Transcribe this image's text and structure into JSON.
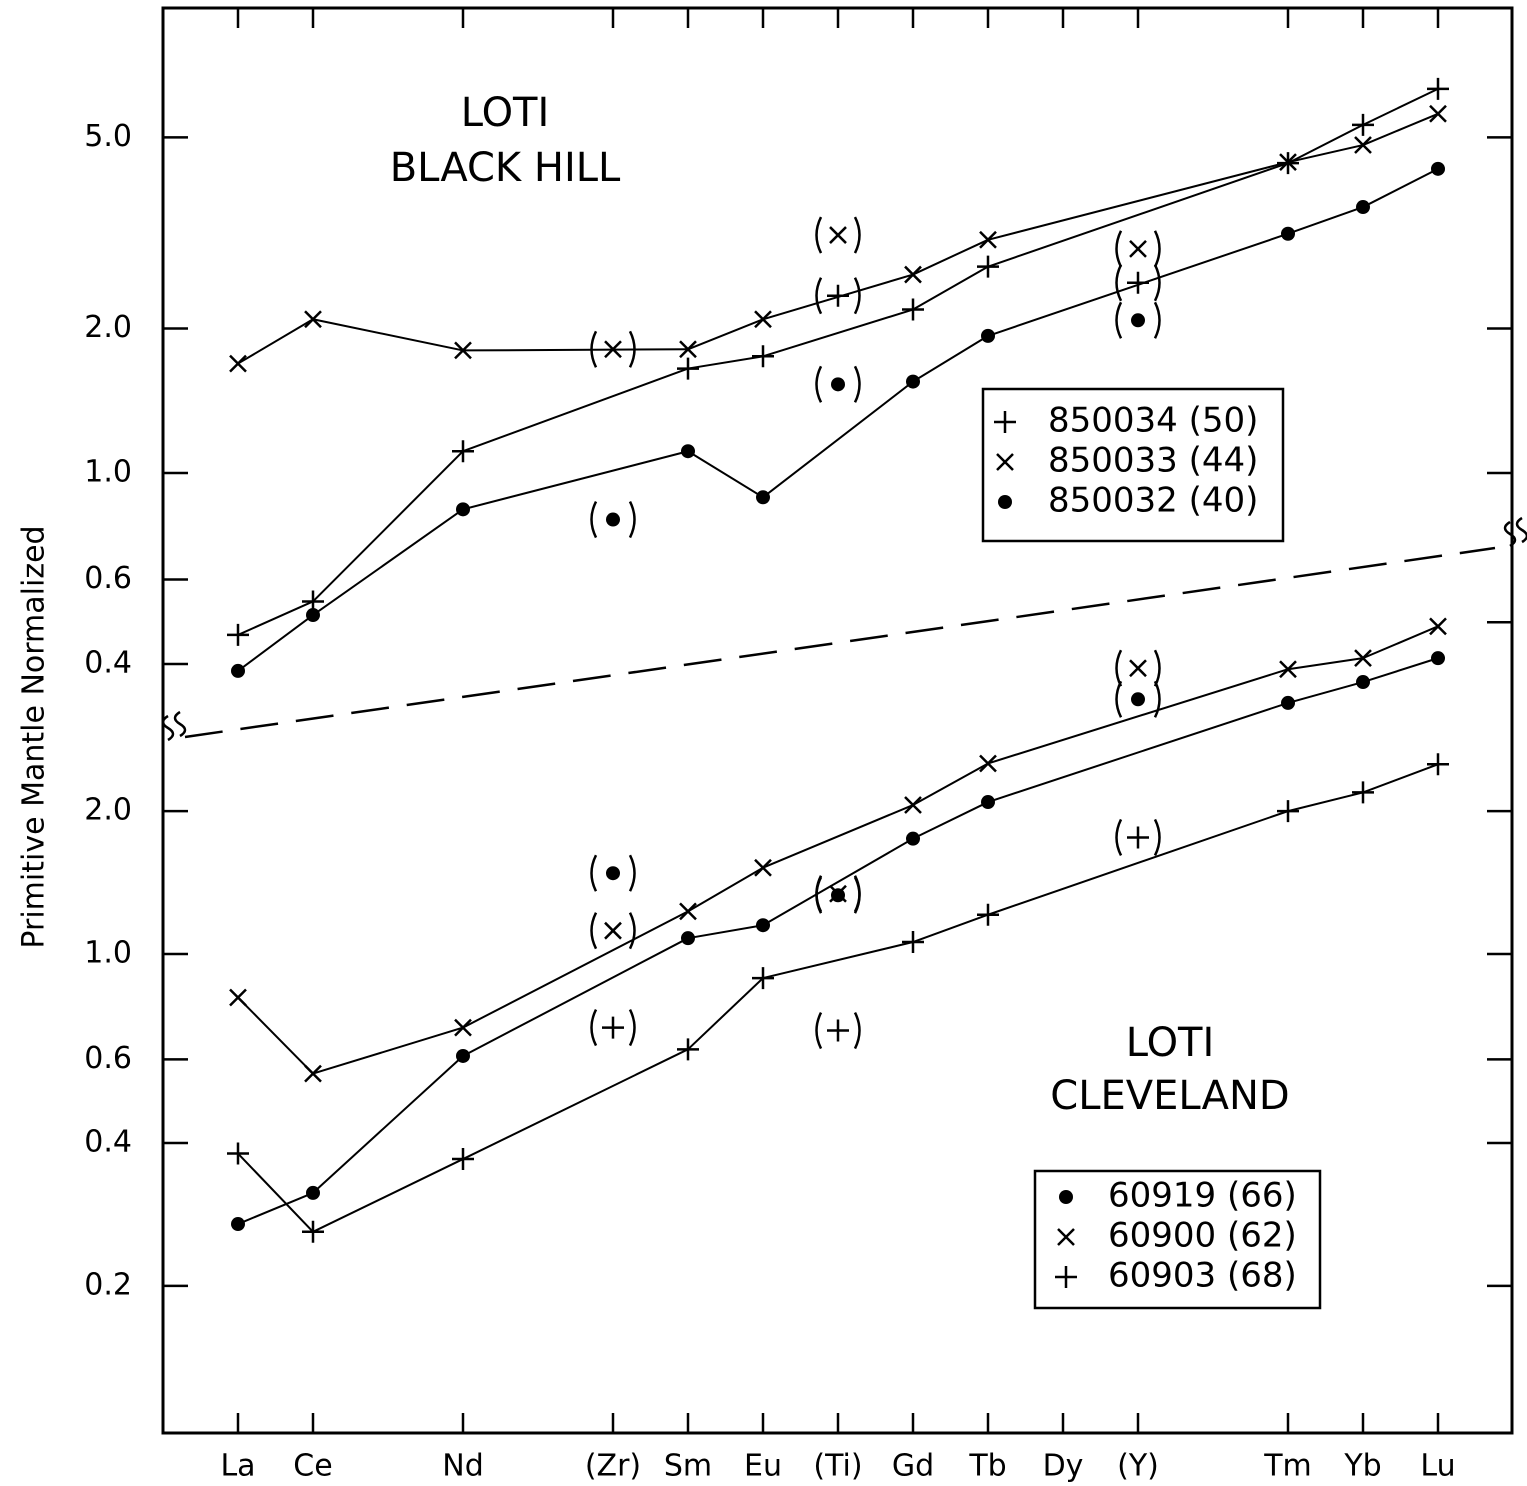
{
  "chart_data": {
    "type": "line",
    "y_scale": "log",
    "ylabel": "Primitive Mantle Normalized",
    "categories": [
      "La",
      "Ce",
      null,
      "Nd",
      null,
      "(Zr)",
      "Sm",
      "Eu",
      "(Ti)",
      "Gd",
      "Tb",
      "Dy",
      "(Y)",
      null,
      "Tm",
      "Yb",
      "Lu"
    ],
    "panels": [
      {
        "annotation": [
          "LOTI",
          "BLACK HILL"
        ],
        "ylim": [
          0.27,
          9.3
        ],
        "yticks": [
          0.4,
          0.6,
          {
            "value": 1,
            "label": "1.0"
          },
          {
            "value": 2,
            "label": "2.0"
          },
          {
            "value": 5,
            "label": "5.0"
          }
        ],
        "series": [
          {
            "name": "850034 (50)",
            "marker": "plus",
            "color": "#000000",
            "values": [
              0.46,
              0.54,
              null,
              1.11,
              null,
              null,
              1.65,
              1.75,
              null,
              2.19,
              2.69,
              null,
              null,
              null,
              4.42,
              5.31,
              6.31
            ],
            "bracketed_values": [
              null,
              null,
              null,
              null,
              null,
              null,
              null,
              null,
              2.34,
              null,
              null,
              null,
              2.49,
              null,
              null,
              null,
              null
            ]
          },
          {
            "name": "850033 (44)",
            "marker": "cross",
            "color": "#000000",
            "values": [
              1.69,
              2.09,
              null,
              1.8,
              null,
              null,
              1.81,
              2.09,
              null,
              2.59,
              3.06,
              null,
              null,
              null,
              4.44,
              4.82,
              5.6
            ],
            "bracketed_values": [
              null,
              null,
              null,
              null,
              null,
              1.81,
              null,
              null,
              3.13,
              null,
              null,
              null,
              2.93,
              null,
              null,
              null,
              null
            ]
          },
          {
            "name": "850032 (40)",
            "marker": "dot",
            "color": "#000000",
            "values": [
              0.387,
              0.506,
              null,
              0.84,
              null,
              null,
              1.11,
              0.89,
              null,
              1.55,
              1.93,
              null,
              null,
              null,
              3.15,
              3.58,
              4.3
            ],
            "bracketed_values": [
              null,
              null,
              null,
              null,
              null,
              0.8,
              null,
              null,
              1.53,
              null,
              null,
              null,
              2.08,
              null,
              null,
              null,
              null
            ]
          }
        ]
      },
      {
        "annotation": [
          "LOTI",
          "CLEVELAND"
        ],
        "ylim": [
          0.098,
          7.2
        ],
        "yticks": [
          0.2,
          0.4,
          0.6,
          {
            "value": 1,
            "label": "1.0"
          },
          {
            "value": 2,
            "label": "2.0"
          },
          {
            "value": 5,
            "label": "5.0"
          }
        ],
        "series": [
          {
            "name": "60919 (66)",
            "marker": "dot",
            "color": "#000000",
            "values": [
              0.27,
              0.314,
              null,
              0.61,
              null,
              null,
              1.08,
              1.15,
              null,
              1.75,
              2.09,
              null,
              null,
              null,
              3.38,
              3.74,
              4.2
            ],
            "bracketed_values": [
              null,
              null,
              null,
              null,
              null,
              1.48,
              null,
              null,
              1.33,
              null,
              null,
              null,
              3.44,
              null,
              null,
              null,
              null
            ]
          },
          {
            "name": "60900 (62)",
            "marker": "cross",
            "color": "#000000",
            "values": [
              0.81,
              0.56,
              null,
              0.7,
              null,
              null,
              1.23,
              1.52,
              null,
              2.06,
              2.52,
              null,
              null,
              null,
              3.98,
              4.2,
              4.9
            ],
            "bracketed_values": [
              null,
              null,
              null,
              null,
              null,
              1.12,
              null,
              null,
              1.34,
              null,
              null,
              null,
              4.0,
              null,
              null,
              null,
              null
            ]
          },
          {
            "name": "60903 (68)",
            "marker": "plus",
            "color": "#000000",
            "values": [
              0.38,
              0.26,
              null,
              0.37,
              null,
              null,
              0.63,
              0.89,
              null,
              1.06,
              1.21,
              null,
              null,
              null,
              2.0,
              2.19,
              2.51
            ],
            "bracketed_values": [
              null,
              null,
              null,
              null,
              null,
              0.7,
              null,
              null,
              0.69,
              null,
              null,
              null,
              1.76,
              null,
              null,
              null,
              null
            ]
          }
        ]
      }
    ]
  }
}
